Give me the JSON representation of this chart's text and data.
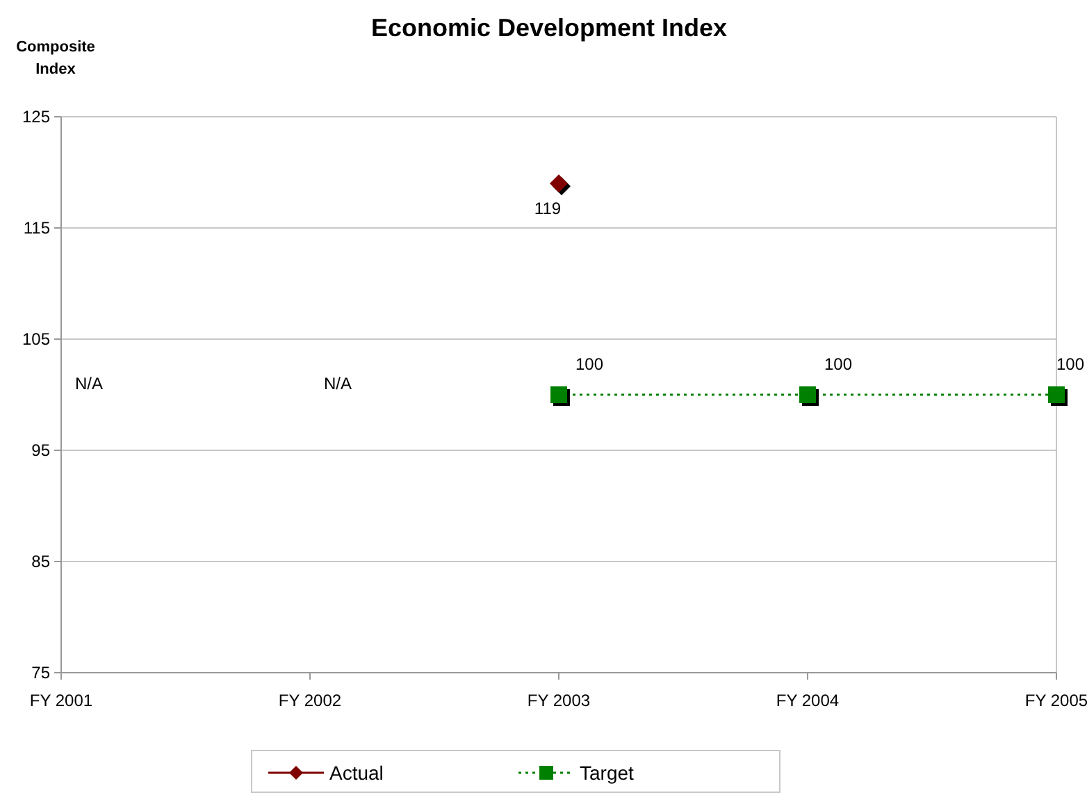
{
  "chart_data": {
    "type": "line",
    "title": "Economic Development Index",
    "ylabel": "Composite Index",
    "categories": [
      "FY 2001",
      "FY 2002",
      "FY 2003",
      "FY 2004",
      "FY 2005"
    ],
    "series": [
      {
        "name": "Actual",
        "color": "#800000",
        "values": [
          null,
          null,
          119,
          null,
          null
        ],
        "marker": "diamond",
        "line_style": "solid"
      },
      {
        "name": "Target",
        "color": "#008000",
        "values": [
          null,
          null,
          100,
          100,
          100
        ],
        "marker": "square",
        "line_style": "dotted"
      }
    ],
    "ylim": [
      75,
      125
    ],
    "yticks": [
      75,
      85,
      95,
      105,
      115,
      125
    ],
    "grid": "y",
    "legend": "bottom",
    "data_labels": true,
    "annotations": [
      "N/A",
      "N/A"
    ]
  }
}
